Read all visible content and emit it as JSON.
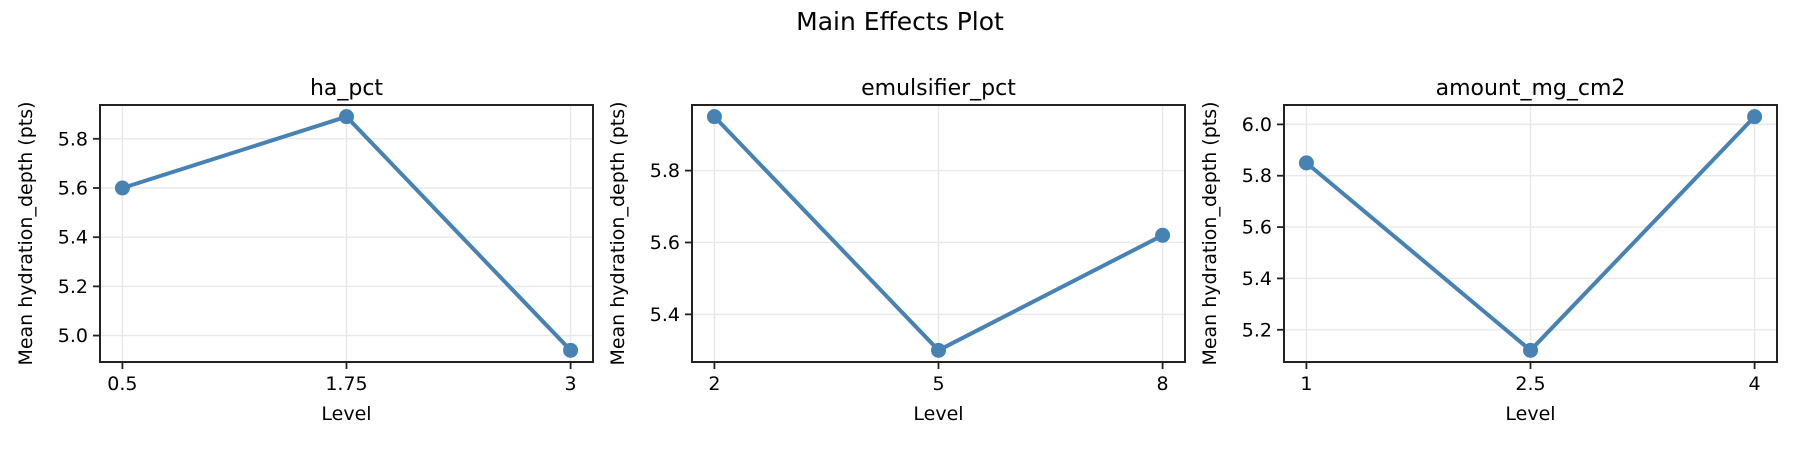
{
  "figure": {
    "title": "Main Effects Plot"
  },
  "style": {
    "line_color": "#4682B4",
    "marker_color": "#4682B4",
    "grid_color": "#e8e8e8",
    "spine_color": "#222222",
    "text_color": "#000000",
    "background_color": "#ffffff"
  },
  "chart_data": [
    {
      "type": "line",
      "title": "ha_pct",
      "xlabel": "Level",
      "ylabel": "Mean hydration_depth (pts)",
      "x": [
        0.5,
        1.75,
        3
      ],
      "y": [
        5.6,
        5.89,
        4.94
      ],
      "xticklabels": [
        "0.5",
        "1.75",
        "3"
      ],
      "yticks": [
        5.0,
        5.2,
        5.4,
        5.6,
        5.8
      ],
      "yticklabels": [
        "5.0",
        "5.2",
        "5.4",
        "5.6",
        "5.8"
      ],
      "xlim": [
        0.375,
        3.125
      ],
      "ylim": [
        4.8925,
        5.9375
      ],
      "grid": true,
      "legend": null
    },
    {
      "type": "line",
      "title": "emulsifier_pct",
      "xlabel": "Level",
      "ylabel": "Mean hydration_depth (pts)",
      "x": [
        2,
        5,
        8
      ],
      "y": [
        5.95,
        5.3,
        5.62
      ],
      "xticklabels": [
        "2",
        "5",
        "8"
      ],
      "yticks": [
        5.4,
        5.6,
        5.8
      ],
      "yticklabels": [
        "5.4",
        "5.6",
        "5.8"
      ],
      "xlim": [
        1.7,
        8.3
      ],
      "ylim": [
        5.2675,
        5.9825
      ],
      "grid": true,
      "legend": null
    },
    {
      "type": "line",
      "title": "amount_mg_cm2",
      "xlabel": "Level",
      "ylabel": "Mean hydration_depth (pts)",
      "x": [
        1,
        2.5,
        4
      ],
      "y": [
        5.85,
        5.12,
        6.03
      ],
      "xticklabels": [
        "1",
        "2.5",
        "4"
      ],
      "yticks": [
        5.2,
        5.4,
        5.6,
        5.8,
        6.0
      ],
      "yticklabels": [
        "5.2",
        "5.4",
        "5.6",
        "5.8",
        "6.0"
      ],
      "xlim": [
        0.85,
        4.15
      ],
      "ylim": [
        5.0745,
        6.0755
      ],
      "grid": true,
      "legend": null
    }
  ]
}
